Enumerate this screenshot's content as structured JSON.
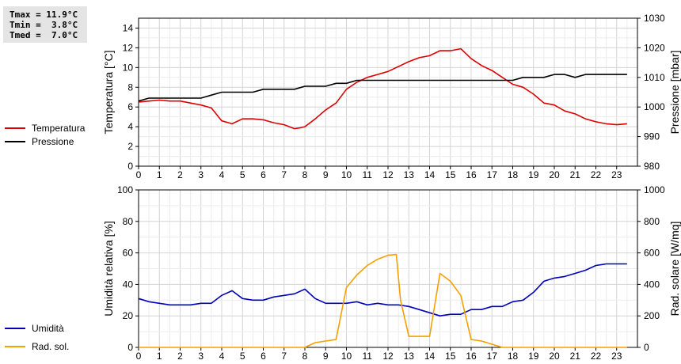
{
  "stats": {
    "tmax": "Tmax = 11.9°C",
    "tmin": "Tmin =  3.8°C",
    "tmed": "Tmed =  7.0°C"
  },
  "legend_top": [
    {
      "label": "Temperatura",
      "color": "#dd0000"
    },
    {
      "label": "Pressione",
      "color": "#000000"
    }
  ],
  "legend_bottom": [
    {
      "label": "Umidità",
      "color": "#0000bb"
    },
    {
      "label": "Rad. sol.",
      "color": "#f5a000"
    }
  ],
  "chart_data": [
    {
      "type": "line",
      "ylabel": "Temperatura [°C]",
      "y2label": "Pressione [mbar]",
      "xlim": [
        0,
        24
      ],
      "ylim": [
        0,
        15
      ],
      "y2lim": [
        980,
        1030
      ],
      "xticks": [
        0,
        1,
        2,
        3,
        4,
        5,
        6,
        7,
        8,
        9,
        10,
        11,
        12,
        13,
        14,
        15,
        16,
        17,
        18,
        19,
        20,
        21,
        22,
        23
      ],
      "yticks": [
        0,
        2,
        4,
        6,
        8,
        10,
        12,
        14
      ],
      "y2ticks": [
        980,
        990,
        1000,
        1010,
        1020,
        1030
      ],
      "grid": true,
      "series": [
        {
          "name": "Temperatura",
          "axis": "left",
          "color": "#dd0000",
          "x": [
            0,
            0.5,
            1,
            1.5,
            2,
            2.5,
            3,
            3.5,
            4,
            4.5,
            5,
            5.5,
            6,
            6.5,
            7,
            7.5,
            7.8,
            8,
            8.5,
            9,
            9.5,
            10,
            10.5,
            11,
            11.5,
            12,
            12.5,
            13,
            13.5,
            14,
            14.5,
            15,
            15.5,
            16,
            16.5,
            17,
            17.5,
            18,
            18.5,
            19,
            19.5,
            20,
            20.5,
            21,
            21.5,
            22,
            22.5,
            23,
            23.5
          ],
          "values": [
            6.5,
            6.6,
            6.7,
            6.6,
            6.6,
            6.4,
            6.2,
            5.9,
            4.6,
            4.3,
            4.8,
            4.8,
            4.7,
            4.4,
            4.2,
            3.8,
            3.9,
            4.0,
            4.8,
            5.7,
            6.4,
            7.8,
            8.5,
            9.0,
            9.3,
            9.6,
            10.1,
            10.6,
            11.0,
            11.2,
            11.7,
            11.7,
            11.9,
            10.9,
            10.2,
            9.7,
            9.0,
            8.3,
            8.0,
            7.3,
            6.4,
            6.2,
            5.6,
            5.3,
            4.8,
            4.5,
            4.3,
            4.2,
            4.3
          ]
        },
        {
          "name": "Pressione",
          "axis": "right",
          "color": "#000000",
          "x": [
            0,
            0.5,
            1,
            1.5,
            2,
            2.5,
            3,
            3.5,
            4,
            4.5,
            5,
            5.5,
            6,
            6.5,
            7,
            7.5,
            8,
            8.5,
            9,
            9.5,
            10,
            10.5,
            11,
            11.5,
            12,
            12.5,
            13,
            13.5,
            14,
            14.5,
            15,
            15.5,
            16,
            16.5,
            17,
            17.5,
            18,
            18.5,
            19,
            19.5,
            20,
            20.5,
            21,
            21.5,
            22,
            22.5,
            23,
            23.5
          ],
          "values": [
            1002,
            1003,
            1003,
            1003,
            1003,
            1003,
            1003,
            1004,
            1005,
            1005,
            1005,
            1005,
            1006,
            1006,
            1006,
            1006,
            1007,
            1007,
            1007,
            1008,
            1008,
            1009,
            1009,
            1009,
            1009,
            1009,
            1009,
            1009,
            1009,
            1009,
            1009,
            1009,
            1009,
            1009,
            1009,
            1009,
            1009,
            1010,
            1010,
            1010,
            1011,
            1011,
            1010,
            1011,
            1011,
            1011,
            1011,
            1011
          ]
        }
      ]
    },
    {
      "type": "line",
      "ylabel": "Umidità relativa [%]",
      "y2label": "Rad. solare [W/mq]",
      "xlim": [
        0,
        24
      ],
      "ylim": [
        0,
        100
      ],
      "y2lim": [
        0,
        1000
      ],
      "xticks": [
        0,
        1,
        2,
        3,
        4,
        5,
        6,
        7,
        8,
        9,
        10,
        11,
        12,
        13,
        14,
        15,
        16,
        17,
        18,
        19,
        20,
        21,
        22,
        23
      ],
      "yticks": [
        0,
        20,
        40,
        60,
        80,
        100
      ],
      "y2ticks": [
        0,
        200,
        400,
        600,
        800,
        1000
      ],
      "grid": true,
      "series": [
        {
          "name": "Umidità",
          "axis": "left",
          "color": "#0000bb",
          "x": [
            0,
            0.5,
            1,
            1.5,
            2,
            2.5,
            3,
            3.5,
            4,
            4.5,
            5,
            5.5,
            6,
            6.5,
            7,
            7.5,
            8,
            8.5,
            9,
            9.5,
            10,
            10.5,
            11,
            11.5,
            12,
            12.5,
            13,
            13.5,
            14,
            14.5,
            15,
            15.5,
            16,
            16.5,
            17,
            17.5,
            18,
            18.5,
            19,
            19.5,
            20,
            20.5,
            21,
            21.5,
            22,
            22.5,
            23,
            23.5
          ],
          "values": [
            31,
            29,
            28,
            27,
            27,
            27,
            28,
            28,
            33,
            36,
            31,
            30,
            30,
            32,
            33,
            34,
            37,
            31,
            28,
            28,
            28,
            29,
            27,
            28,
            27,
            27,
            26,
            24,
            22,
            20,
            21,
            21,
            24,
            24,
            26,
            26,
            29,
            30,
            35,
            42,
            44,
            45,
            47,
            49,
            52,
            53,
            53,
            53
          ]
        },
        {
          "name": "Rad. sol.",
          "axis": "right",
          "color": "#f5a000",
          "x": [
            0,
            1,
            2,
            3,
            4,
            5,
            6,
            7,
            8,
            8.5,
            9,
            9.5,
            10,
            10.5,
            11,
            11.5,
            12,
            12.4,
            12.6,
            13,
            13.5,
            14,
            14.5,
            15,
            15.5,
            16,
            16.5,
            17,
            17.5,
            18,
            19,
            20,
            21,
            22,
            23,
            23.5
          ],
          "values": [
            0,
            0,
            0,
            0,
            0,
            0,
            0,
            0,
            0,
            30,
            40,
            50,
            380,
            460,
            520,
            560,
            585,
            590,
            300,
            70,
            70,
            70,
            470,
            420,
            330,
            50,
            40,
            20,
            0,
            0,
            0,
            0,
            0,
            0,
            0,
            0
          ]
        }
      ]
    }
  ]
}
